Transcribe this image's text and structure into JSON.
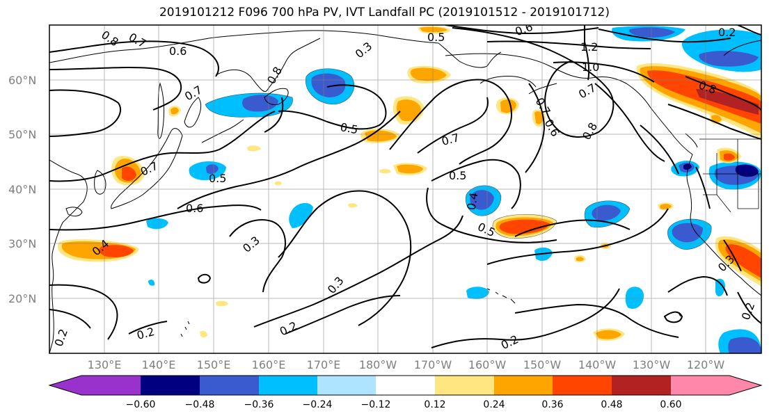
{
  "title": "2019101212 F096 700 hPa PV, IVT Landfall PC (2019101512 - 2019101712)",
  "axes": {
    "lat_labels": [
      "60°N",
      "50°N",
      "40°N",
      "30°N",
      "20°N"
    ],
    "lon_labels": [
      "130°E",
      "140°E",
      "150°E",
      "160°E",
      "170°E",
      "180°W",
      "170°W",
      "160°W",
      "150°W",
      "140°W",
      "130°W",
      "120°W"
    ]
  },
  "colorbar": {
    "colors": [
      "#9932cc",
      "#000080",
      "#3a5bcf",
      "#00bfff",
      "#aee4ff",
      "#ffffff",
      "#ffe680",
      "#ffa500",
      "#ff4500",
      "#b22222",
      "#ff88aa"
    ],
    "tick_labels": [
      "−0.60",
      "−0.48",
      "−0.36",
      "−0.24",
      "−0.12",
      "0.12",
      "0.24",
      "0.36",
      "0.48",
      "0.60"
    ]
  },
  "contour_labels": [
    "0.8",
    "0.7",
    "0.6",
    "0.5",
    "0.6",
    "0.2",
    "1.2",
    "1.0",
    "0.8",
    "0.8",
    "0.7",
    "0.7",
    "0.5",
    "0.7",
    "0.6",
    "0.8",
    "0.7",
    "0.7",
    "0.5",
    "0.5",
    "0.6",
    "0.4",
    "0.5",
    "0.3",
    "0.3",
    "0.2",
    "0.2",
    "0.2",
    "0.2",
    "0.3",
    "0.4",
    "0.2",
    "0.3"
  ]
}
